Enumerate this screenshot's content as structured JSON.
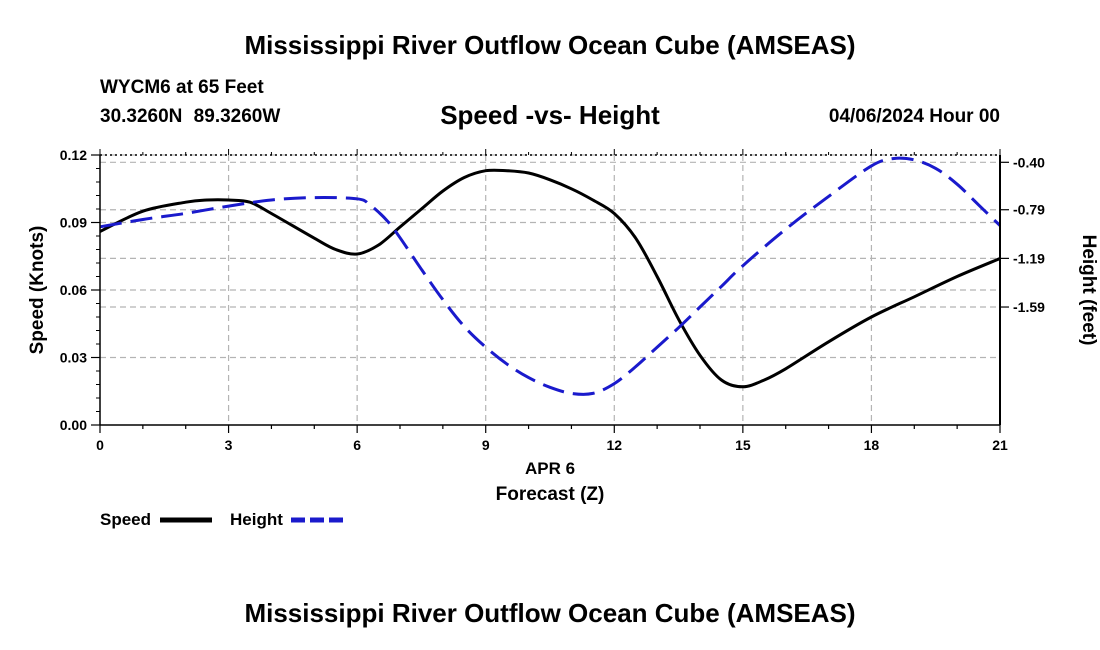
{
  "header": {
    "title": "Mississippi River Outflow Ocean Cube (AMSEAS)",
    "station": "WYCM6 at 65 Feet",
    "coordinates": "30.3260N  89.3260W",
    "chart_title": "Speed -vs- Height",
    "date": "04/06/2024 Hour 00"
  },
  "footer": {
    "title": "Mississippi River Outflow Ocean Cube (AMSEAS)"
  },
  "colors": {
    "speed": "#000000",
    "height": "#1a1acc",
    "grid": "#b4b4b4"
  },
  "chart_data": {
    "type": "line",
    "title": "Speed -vs- Height",
    "xlabel": "Forecast (Z)",
    "xlabel_date": "APR 6",
    "ylabel_left": "Speed (Knots)",
    "ylabel_right": "Height (feet)",
    "xlim": [
      0,
      21
    ],
    "ylim_left": [
      0,
      0.12
    ],
    "ylim_right": [
      -2.56,
      -0.34
    ],
    "x_ticks": [
      0,
      3,
      6,
      9,
      12,
      15,
      18,
      21
    ],
    "x_tick_labels": [
      "0",
      "3",
      "6",
      "9",
      "12",
      "15",
      "18",
      "21"
    ],
    "y_left_ticks": [
      0,
      0.03,
      0.06,
      0.09,
      0.12
    ],
    "y_left_tick_labels": [
      "0.00",
      "0.03",
      "0.06",
      "0.09",
      "0.12"
    ],
    "y_right_ticks": [
      -0.4,
      -0.79,
      -1.19,
      -1.59
    ],
    "y_right_tick_labels": [
      "-0.40",
      "-0.79",
      "-1.19",
      "-1.59"
    ],
    "grid": true,
    "legend": [
      {
        "name": "Speed",
        "style": "solid"
      },
      {
        "name": "Height",
        "style": "dashed"
      }
    ],
    "legend_position": "bottom-left",
    "series": [
      {
        "name": "Speed",
        "axis": "left",
        "x": [
          0,
          1,
          2,
          2.5,
          3,
          3.5,
          4,
          5,
          5.5,
          6,
          6.5,
          7,
          7.5,
          8,
          8.5,
          9,
          9.5,
          10,
          10.5,
          11,
          11.5,
          12,
          12.5,
          13,
          13.5,
          14,
          14.5,
          15,
          15.5,
          16,
          17,
          18,
          19,
          20,
          21
        ],
        "y": [
          0.086,
          0.095,
          0.099,
          0.1,
          0.1,
          0.099,
          0.094,
          0.083,
          0.078,
          0.076,
          0.08,
          0.088,
          0.096,
          0.104,
          0.11,
          0.113,
          0.113,
          0.112,
          0.109,
          0.105,
          0.1,
          0.094,
          0.083,
          0.066,
          0.047,
          0.031,
          0.02,
          0.017,
          0.02,
          0.025,
          0.037,
          0.048,
          0.057,
          0.066,
          0.074
        ]
      },
      {
        "name": "Height",
        "axis": "right",
        "x": [
          0,
          1,
          2,
          3,
          4,
          5,
          6,
          6.3,
          6.7,
          7,
          7.5,
          8,
          8.5,
          9,
          9.5,
          10,
          10.5,
          11,
          11.5,
          12,
          12.5,
          13,
          13.5,
          14,
          14.5,
          15,
          16,
          17,
          18,
          18.5,
          19,
          19.5,
          20,
          20.5,
          21
        ],
        "y": [
          -0.93,
          -0.87,
          -0.82,
          -0.76,
          -0.71,
          -0.69,
          -0.7,
          -0.75,
          -0.88,
          -1.02,
          -1.28,
          -1.53,
          -1.75,
          -1.92,
          -2.06,
          -2.17,
          -2.25,
          -2.3,
          -2.3,
          -2.22,
          -2.08,
          -1.92,
          -1.76,
          -1.59,
          -1.42,
          -1.25,
          -0.95,
          -0.68,
          -0.43,
          -0.37,
          -0.38,
          -0.45,
          -0.58,
          -0.75,
          -0.92
        ]
      }
    ]
  }
}
